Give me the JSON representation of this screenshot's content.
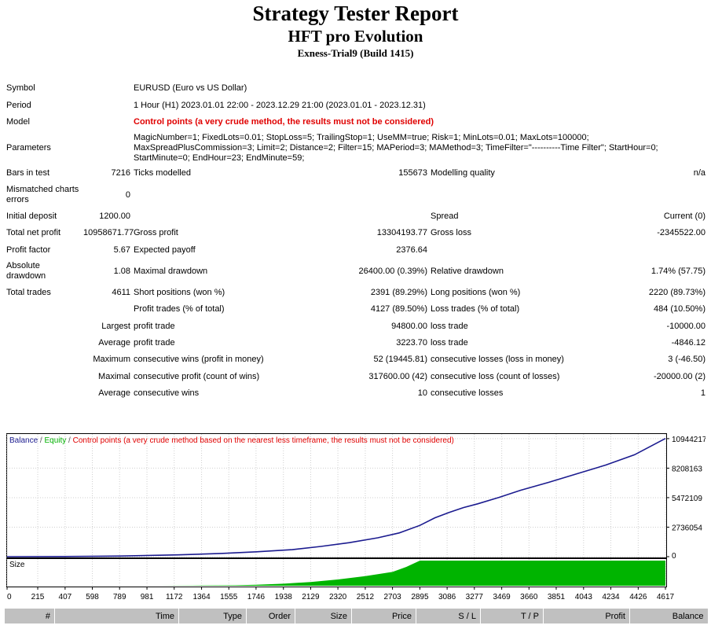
{
  "header": {
    "title": "Strategy Tester Report",
    "expert": "HFT pro Evolution",
    "server": "Exness-Trial9 (Build 1415)"
  },
  "summary": {
    "symbol_label": "Symbol",
    "symbol_value": "EURUSD (Euro vs US Dollar)",
    "period_label": "Period",
    "period_value": "1 Hour (H1) 2023.01.01 22:00 - 2023.12.29 21:00 (2023.01.01 - 2023.12.31)",
    "model_label": "Model",
    "model_value": "Control points (a very crude method, the results must not be considered)",
    "parameters_label": "Parameters",
    "parameters_value": "MagicNumber=1; FixedLots=0.01; StopLoss=5; TrailingStop=1; UseMM=true; Risk=1; MinLots=0.01; MaxLots=100000; MaxSpreadPlusCommission=3; Limit=2; Distance=2; Filter=15; MAPeriod=3; MAMethod=3; TimeFilter=\"----------Time Filter\"; StartHour=0; StartMinute=0; EndHour=23; EndMinute=59;",
    "bars_label": "Bars in test",
    "bars_value": "7216",
    "ticks_label": "Ticks modelled",
    "ticks_value": "155673",
    "quality_label": "Modelling quality",
    "quality_value": "n/a",
    "mismatched_label": "Mismatched charts errors",
    "mismatched_value": "0"
  },
  "results": {
    "initial_deposit_label": "Initial deposit",
    "initial_deposit": "1200.00",
    "spread_label": "Spread",
    "spread": "Current (0)",
    "net_profit_label": "Total net profit",
    "net_profit": "10958671.77",
    "gross_profit_label": "Gross profit",
    "gross_profit": "13304193.77",
    "gross_loss_label": "Gross loss",
    "gross_loss": "-2345522.00",
    "profit_factor_label": "Profit factor",
    "profit_factor": "5.67",
    "expected_payoff_label": "Expected payoff",
    "expected_payoff": "2376.64",
    "abs_dd_label": "Absolute drawdown",
    "abs_dd": "1.08",
    "max_dd_label": "Maximal drawdown",
    "max_dd": "26400.00 (0.39%)",
    "rel_dd_label": "Relative drawdown",
    "rel_dd": "1.74% (57.75)",
    "total_trades_label": "Total trades",
    "total_trades": "4611",
    "short_label": "Short positions (won %)",
    "short": "2391 (89.29%)",
    "long_label": "Long positions (won %)",
    "long": "2220 (89.73%)",
    "profit_trades_label": "Profit trades (% of total)",
    "profit_trades": "4127 (89.50%)",
    "loss_trades_label": "Loss trades (% of total)",
    "loss_trades": "484 (10.50%)",
    "largest_label": "Largest",
    "largest_profit_label": "profit trade",
    "largest_profit": "94800.00",
    "largest_loss_label": "loss trade",
    "largest_loss": "-10000.00",
    "average_label": "Average",
    "average_profit_label": "profit trade",
    "average_profit": "3223.70",
    "average_loss_label": "loss trade",
    "average_loss": "-4846.12",
    "maximum_label": "Maximum",
    "max_cons_wins_label": "consecutive wins (profit in money)",
    "max_cons_wins": "52 (19445.81)",
    "max_cons_losses_label": "consecutive losses (loss in money)",
    "max_cons_losses": "3 (-46.50)",
    "maximal_label": "Maximal",
    "maximal_cons_profit_label": "consecutive profit (count of wins)",
    "maximal_cons_profit": "317600.00 (42)",
    "maximal_cons_loss_label": "consecutive loss (count of losses)",
    "maximal_cons_loss": "-20000.00 (2)",
    "avg_label": "Average",
    "avg_cons_wins_label": "consecutive wins",
    "avg_cons_wins": "10",
    "avg_cons_losses_label": "consecutive losses",
    "avg_cons_losses": "1"
  },
  "chart_data": {
    "type": "line",
    "legend": [
      "Balance",
      "Equity",
      "Control points (a very crude method based on the nearest less timeframe, the results must not be considered)"
    ],
    "legend_separator": " / ",
    "colors": {
      "balance": "#1b1b8f",
      "equity": "#00b000",
      "control": "#e00000",
      "size": "#00b400"
    },
    "y_ticks": [
      0,
      2736054,
      5472109,
      8208163,
      10944217
    ],
    "ylim": [
      0,
      11300000
    ],
    "x_ticks": [
      0,
      215,
      407,
      598,
      789,
      981,
      1172,
      1364,
      1555,
      1746,
      1938,
      2129,
      2320,
      2512,
      2703,
      2895,
      3086,
      3277,
      3469,
      3660,
      3851,
      4043,
      4234,
      4426,
      4617
    ],
    "xlim": [
      0,
      4617
    ],
    "x": [
      0,
      400,
      800,
      1200,
      1500,
      1750,
      2000,
      2200,
      2400,
      2600,
      2750,
      2895,
      3000,
      3100,
      3200,
      3300,
      3450,
      3600,
      3800,
      4000,
      4200,
      4400,
      4617
    ],
    "balance": [
      1200,
      15000,
      60000,
      170000,
      300000,
      450000,
      650000,
      950000,
      1300000,
      1750000,
      2200000,
      2900000,
      3600000,
      4100000,
      4550000,
      4900000,
      5500000,
      6150000,
      6900000,
      7700000,
      8500000,
      9450000,
      10958672
    ],
    "size_label": "Size",
    "size_x": [
      0,
      1000,
      1300,
      1600,
      1746,
      1938,
      2129,
      2320,
      2512,
      2703,
      2800,
      2895,
      4617
    ],
    "size_values": [
      0,
      0,
      1,
      2,
      4,
      8,
      15,
      25,
      38,
      55,
      75,
      100,
      100
    ]
  },
  "trades_table": {
    "columns": [
      "#",
      "Time",
      "Type",
      "Order",
      "Size",
      "Price",
      "S / L",
      "T / P",
      "Profit",
      "Balance"
    ]
  }
}
